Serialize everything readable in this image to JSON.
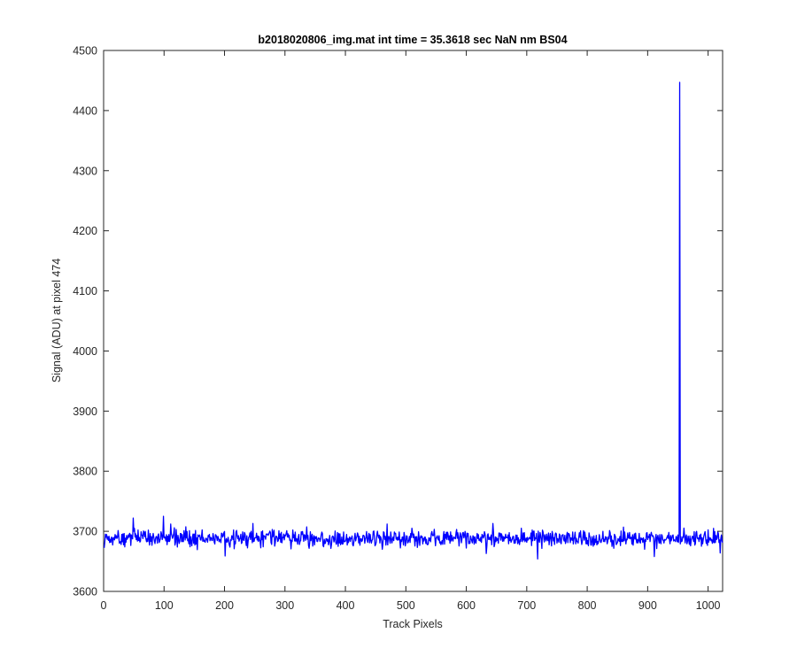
{
  "chart_data": {
    "type": "line",
    "title": "b2018020806_img.mat int time = 35.3618 sec  NaN nm BS04",
    "xlabel": "Track Pixels",
    "ylabel": "Signal (ADU) at pixel 474",
    "xlim": [
      0,
      1024
    ],
    "ylim": [
      3600,
      4500
    ],
    "xticks": [
      0,
      100,
      200,
      300,
      400,
      500,
      600,
      700,
      800,
      900,
      1000
    ],
    "yticks": [
      3600,
      3700,
      3800,
      3900,
      4000,
      4100,
      4200,
      4300,
      4400,
      4500
    ],
    "grid": false,
    "legend": "none",
    "series": [
      {
        "color": "#0000ff",
        "baseline": 3688,
        "noise_amplitude": 12,
        "peaks": [
          {
            "x": 48,
            "y": 3722
          },
          {
            "x": 98,
            "y": 3725
          },
          {
            "x": 110,
            "y": 3712
          },
          {
            "x": 246,
            "y": 3713
          },
          {
            "x": 468,
            "y": 3712
          },
          {
            "x": 643,
            "y": 3713
          },
          {
            "x": 952,
            "y": 4447
          },
          {
            "x": 1008,
            "y": 3705
          }
        ],
        "dips": [
          {
            "x": 200,
            "y": 3659
          },
          {
            "x": 632,
            "y": 3663
          },
          {
            "x": 717,
            "y": 3654
          },
          {
            "x": 910,
            "y": 3658
          },
          {
            "x": 1019,
            "y": 3664
          }
        ],
        "n_points": 1024
      }
    ]
  }
}
